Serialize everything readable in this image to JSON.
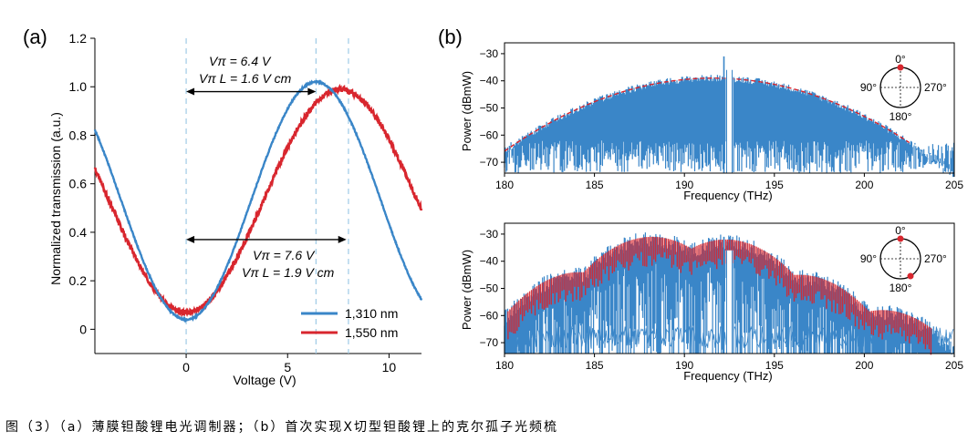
{
  "caption": "图（3）（a）薄膜钽酸锂电光调制器；（b）首次实现X切型钽酸锂上的克尔孤子光频梳",
  "colors": {
    "blue": "#3A86C8",
    "red": "#D8262E",
    "dashed": "#9FCBE6",
    "envelope": "#D8262E"
  },
  "chart_data": [
    {
      "panel_label": "(a)",
      "type": "line",
      "xlabel": "Voltage (V)",
      "ylabel": "Normalized transmission (a.u.)",
      "xlim": [
        -4.5,
        11.6
      ],
      "ylim": [
        -0.1,
        1.2
      ],
      "x_ticks": [
        0,
        5,
        10
      ],
      "y_ticks": [
        0,
        0.2,
        0.4,
        0.6,
        0.8,
        1.0,
        1.2
      ],
      "y_tick_labels": [
        "0",
        "0.2",
        "0.4",
        "0.6",
        "0.8",
        "1.0",
        "1.2"
      ],
      "series": [
        {
          "name": "1,310 nm",
          "color": "blue",
          "min_x": 0,
          "min_y": 0.04,
          "max_y": 1.02,
          "v_pi": 6.4
        },
        {
          "name": "1,550 nm",
          "color": "red",
          "min_x": 0,
          "min_y": 0.07,
          "max_y": 0.99,
          "v_pi": 7.6
        }
      ],
      "dashed_lines_x": [
        0,
        6.4,
        8.0
      ],
      "annotations": [
        {
          "line1": "Vπ = 6.4 V",
          "line2": "Vπ L = 1.6 V cm",
          "arrow_x": [
            0,
            6.4
          ],
          "arrow_y": 0.98
        },
        {
          "line1": "Vπ = 7.6 V",
          "line2": "Vπ L = 1.9 V cm",
          "arrow_x": [
            0,
            7.9
          ],
          "arrow_y": 0.37
        }
      ],
      "legend": "bottom-right"
    },
    {
      "panel_label": "(b)",
      "type": "line",
      "xlabel": "Frequency (THz)",
      "ylabel": "Power (dBmW)",
      "xlim": [
        180,
        205
      ],
      "ylim": [
        -74,
        -26
      ],
      "x_ticks": [
        180,
        185,
        190,
        195,
        200,
        205
      ],
      "y_ticks": [
        -30,
        -40,
        -50,
        -60,
        -70
      ],
      "y_tick_labels": [
        "−30",
        "−40",
        "−50",
        "−60",
        "−70"
      ],
      "pump_frequency": 192.5,
      "envelope_peak": -39,
      "polar_inset": {
        "labels": [
          "0°",
          "90°",
          "270°",
          "180°"
        ],
        "marker_angles": [
          0
        ]
      }
    },
    {
      "type": "line",
      "xlabel": "Frequency (THz)",
      "ylabel": "Power (dBmW)",
      "xlim": [
        180,
        205
      ],
      "ylim": [
        -74,
        -26
      ],
      "x_ticks": [
        180,
        185,
        190,
        195,
        200,
        205
      ],
      "y_ticks": [
        -30,
        -40,
        -50,
        -60,
        -70
      ],
      "y_tick_labels": [
        "−30",
        "−40",
        "−50",
        "−60",
        "−70"
      ],
      "pump_frequency": 192.5,
      "lobe_centers": [
        184.2,
        188.2,
        192.3,
        196.4,
        201.0
      ],
      "lobe_peaks": [
        -45,
        -32,
        -33,
        -46,
        -59
      ],
      "polar_inset": {
        "labels": [
          "0°",
          "90°",
          "270°",
          "180°"
        ],
        "marker_angles": [
          0,
          150
        ]
      }
    }
  ]
}
